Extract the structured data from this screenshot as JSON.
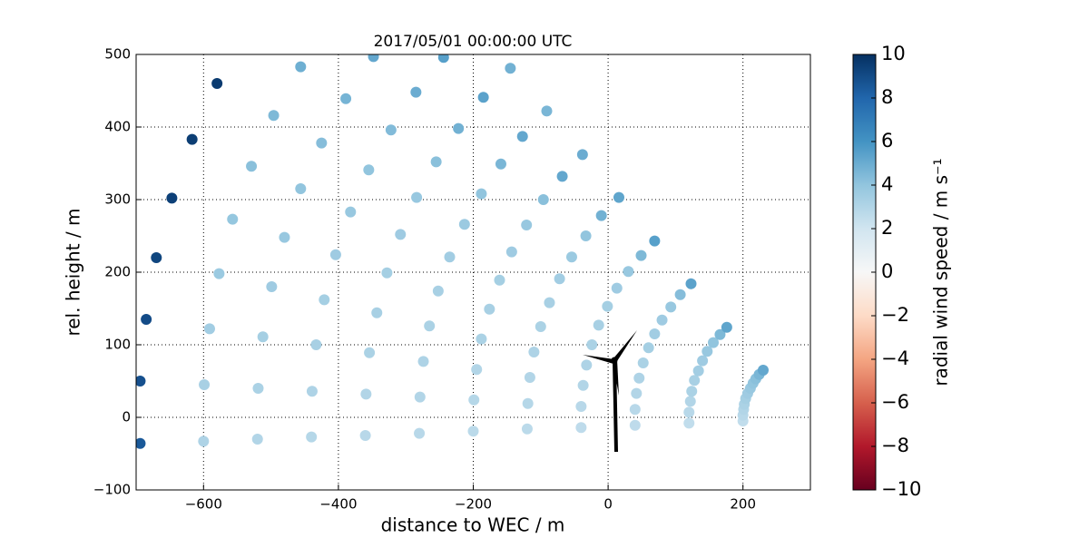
{
  "chart_data": {
    "type": "scatter",
    "title": "2017/05/01 00:00:00 UTC",
    "x_label": "distance to WEC / m",
    "y_label": "rel. height / m",
    "colorbar_label": "radial wind speed / m s⁻¹",
    "colormap": "RdBu",
    "clim": [
      -10,
      10
    ],
    "cticks": [
      {
        "value": -10,
        "label": "−10"
      },
      {
        "value": -8,
        "label": "−8"
      },
      {
        "value": -6,
        "label": "−6"
      },
      {
        "value": -4,
        "label": "−4"
      },
      {
        "value": -2,
        "label": "−2"
      },
      0,
      2,
      4,
      6,
      8,
      10
    ],
    "xlim": [
      -700,
      300
    ],
    "xticks": [
      {
        "value": -600,
        "label": "−600"
      },
      {
        "value": -400,
        "label": "−400"
      },
      {
        "value": -200,
        "label": "−200"
      },
      0,
      200
    ],
    "ylim": [
      -100,
      500
    ],
    "yticks": [
      {
        "value": -100,
        "label": "−100"
      },
      0,
      100,
      200,
      300,
      400,
      500
    ],
    "grid": true,
    "x": [
      200,
      200,
      201,
      202,
      204,
      207,
      211,
      215,
      219,
      224,
      230,
      120,
      120,
      122,
      124,
      128,
      134,
      140,
      147,
      156,
      166,
      176,
      40,
      40,
      42,
      46,
      52,
      60,
      69,
      80,
      93,
      107,
      123,
      -40,
      -40,
      -37,
      -32,
      -24,
      -14,
      -1,
      13,
      30,
      49,
      69,
      -120,
      -119,
      -116,
      -110,
      -100,
      -87,
      -72,
      -54,
      -33,
      -10,
      16,
      -200,
      -199,
      -195,
      -188,
      -176,
      -161,
      -143,
      -121,
      -96,
      -68,
      -38,
      -280,
      -279,
      -274,
      -265,
      -252,
      -235,
      -213,
      -188,
      -159,
      -127,
      -91,
      -360,
      -359,
      -354,
      -343,
      -328,
      -308,
      -284,
      -255,
      -222,
      -185,
      -145,
      -440,
      -439,
      -433,
      -421,
      -404,
      -382,
      -355,
      -322,
      -285,
      -244,
      -520,
      -519,
      -512,
      -499,
      -480,
      -456,
      -425,
      -389,
      -348,
      -600,
      -599,
      -591,
      -577,
      -557,
      -529,
      -496,
      -456,
      -694,
      -694,
      -685,
      -670,
      -647,
      -617,
      -580
    ],
    "y": [
      -5,
      3,
      11,
      18,
      26,
      33,
      40,
      47,
      53,
      59,
      65,
      -8,
      7,
      22,
      36,
      51,
      64,
      78,
      91,
      103,
      114,
      124,
      -11,
      11,
      33,
      54,
      75,
      96,
      115,
      134,
      152,
      169,
      184,
      -14,
      15,
      44,
      72,
      100,
      127,
      153,
      178,
      201,
      223,
      243,
      -16,
      19,
      55,
      90,
      125,
      158,
      191,
      221,
      250,
      278,
      303,
      -19,
      24,
      66,
      108,
      149,
      189,
      228,
      265,
      300,
      332,
      362,
      -22,
      28,
      77,
      126,
      174,
      221,
      266,
      308,
      349,
      387,
      422,
      -25,
      32,
      89,
      144,
      199,
      252,
      303,
      352,
      398,
      441,
      481,
      -27,
      36,
      100,
      162,
      224,
      283,
      341,
      396,
      448,
      496,
      -30,
      40,
      111,
      180,
      248,
      315,
      378,
      439,
      497,
      -33,
      45,
      122,
      198,
      273,
      346,
      416,
      483,
      -36,
      50,
      135,
      220,
      302,
      383,
      460
    ],
    "values": [
      2.5,
      2.8,
      3.0,
      3.2,
      3.4,
      3.6,
      3.8,
      4.0,
      4.2,
      4.6,
      5.2,
      2.5,
      2.8,
      3.0,
      3.2,
      3.3,
      3.5,
      3.6,
      3.8,
      4.0,
      4.5,
      5.3,
      2.6,
      2.8,
      3.0,
      3.1,
      3.2,
      3.4,
      3.5,
      3.6,
      3.8,
      4.3,
      5.4,
      2.6,
      2.8,
      3.0,
      3.1,
      3.2,
      3.3,
      3.4,
      3.6,
      3.8,
      4.5,
      5.5,
      2.7,
      2.9,
      3.0,
      3.1,
      3.2,
      3.3,
      3.5,
      3.7,
      4.0,
      4.8,
      5.3,
      2.7,
      2.9,
      3.0,
      3.2,
      3.3,
      3.4,
      3.6,
      3.8,
      4.2,
      5.2,
      5.0,
      2.8,
      3.0,
      3.1,
      3.2,
      3.3,
      3.5,
      3.7,
      4.0,
      4.6,
      5.2,
      4.6,
      2.8,
      3.0,
      3.2,
      3.3,
      3.4,
      3.6,
      3.8,
      4.2,
      4.8,
      5.4,
      4.8,
      2.9,
      3.1,
      3.3,
      3.4,
      3.6,
      3.8,
      4.0,
      4.4,
      5.0,
      5.5,
      3.0,
      3.2,
      3.4,
      3.6,
      3.8,
      4.0,
      4.3,
      4.7,
      5.2,
      3.1,
      3.3,
      3.5,
      3.7,
      3.9,
      4.2,
      4.5,
      4.9,
      8.5,
      8.8,
      9.0,
      9.2,
      9.4,
      9.5,
      9.6
    ]
  }
}
